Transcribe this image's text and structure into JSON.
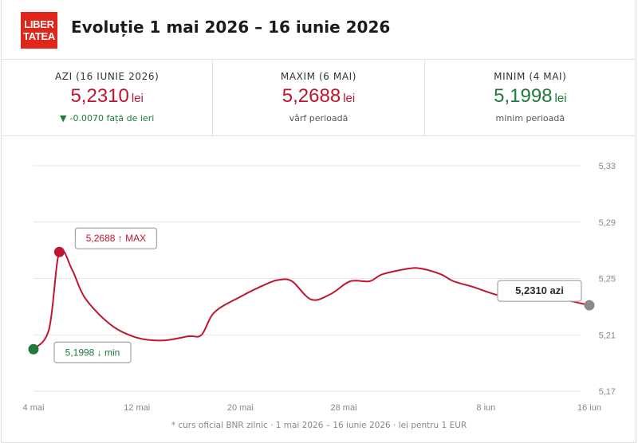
{
  "header": {
    "logo_text": "LIBER TATEA",
    "logo_line1": "LIBER",
    "logo_line2": "TATEA",
    "title": "Evoluție 1 mai 2026 – 16 iunie 2026"
  },
  "stats": [
    {
      "label": "AZI (16 IUNIE 2026)",
      "value": "5,2310",
      "unit": "lei",
      "color": "#c0152f",
      "sub_arrow": "▼",
      "sub": "-0.0070 față de ieri",
      "sub_color": "#207a3d"
    },
    {
      "label": "MAXIM (6 MAI)",
      "value": "5,2688",
      "unit": "lei",
      "color": "#c0152f",
      "sub_arrow": "",
      "sub": "vârf perioadă",
      "sub_color": "#555555"
    },
    {
      "label": "MINIM (4 MAI)",
      "value": "5,1998",
      "unit": "lei",
      "color": "#207a3d",
      "sub_arrow": "",
      "sub": "minim perioadă",
      "sub_color": "#555555"
    }
  ],
  "chart_data": {
    "type": "line",
    "x_unit": "day",
    "x_ticks": [
      {
        "day": 4,
        "label": "4 mai"
      },
      {
        "day": 12,
        "label": "12 mai"
      },
      {
        "day": 20,
        "label": "20 mai"
      },
      {
        "day": 28,
        "label": "28 mai"
      },
      {
        "day": 39,
        "label": "8 iun"
      },
      {
        "day": 47,
        "label": "16 iun"
      }
    ],
    "y_ticks": [
      {
        "value": 5.17,
        "label": "5,17"
      },
      {
        "value": 5.21,
        "label": "5,21"
      },
      {
        "value": 5.25,
        "label": "5,25"
      },
      {
        "value": 5.29,
        "label": "5,29"
      },
      {
        "value": 5.33,
        "label": "5,33"
      }
    ],
    "xlim": [
      4,
      47
    ],
    "ylim": [
      5.17,
      5.33
    ],
    "grid": "horizontal",
    "series": [
      {
        "color": "#c0152f",
        "points": [
          [
            4,
            5.1998
          ],
          [
            5.2,
            5.214
          ],
          [
            6,
            5.2688
          ],
          [
            7,
            5.256
          ],
          [
            8,
            5.236
          ],
          [
            10,
            5.217
          ],
          [
            12,
            5.208
          ],
          [
            14,
            5.206
          ],
          [
            16,
            5.209
          ],
          [
            17,
            5.21
          ],
          [
            18,
            5.226
          ],
          [
            20,
            5.237
          ],
          [
            22,
            5.246
          ],
          [
            23,
            5.249
          ],
          [
            24,
            5.248
          ],
          [
            25.5,
            5.235
          ],
          [
            27,
            5.239
          ],
          [
            28.5,
            5.248
          ],
          [
            30,
            5.248
          ],
          [
            31,
            5.253
          ],
          [
            33,
            5.257
          ],
          [
            34,
            5.257
          ],
          [
            35.5,
            5.253
          ],
          [
            36.5,
            5.248
          ],
          [
            38,
            5.244
          ],
          [
            40,
            5.238
          ],
          [
            42,
            5.236
          ],
          [
            44,
            5.236
          ],
          [
            45.5,
            5.234
          ],
          [
            47,
            5.231
          ]
        ]
      }
    ],
    "markers": [
      {
        "x": 4,
        "y": 5.1998,
        "color": "#207a3d",
        "label": "5,1998 ↓ min",
        "label_color": "#207a3d"
      },
      {
        "x": 6,
        "y": 5.2688,
        "color": "#c0152f",
        "label": "5,2688 ↑ MAX",
        "label_color": "#c0152f"
      },
      {
        "x": 47,
        "y": 5.231,
        "color": "#8a8a8a",
        "label": "5,2310 azi",
        "label_color": "#2b2b2b"
      }
    ]
  },
  "footer": "* curs oficial BNR zilnic · 1 mai 2026 – 16 iunie 2026 · lei pentru 1 EUR"
}
